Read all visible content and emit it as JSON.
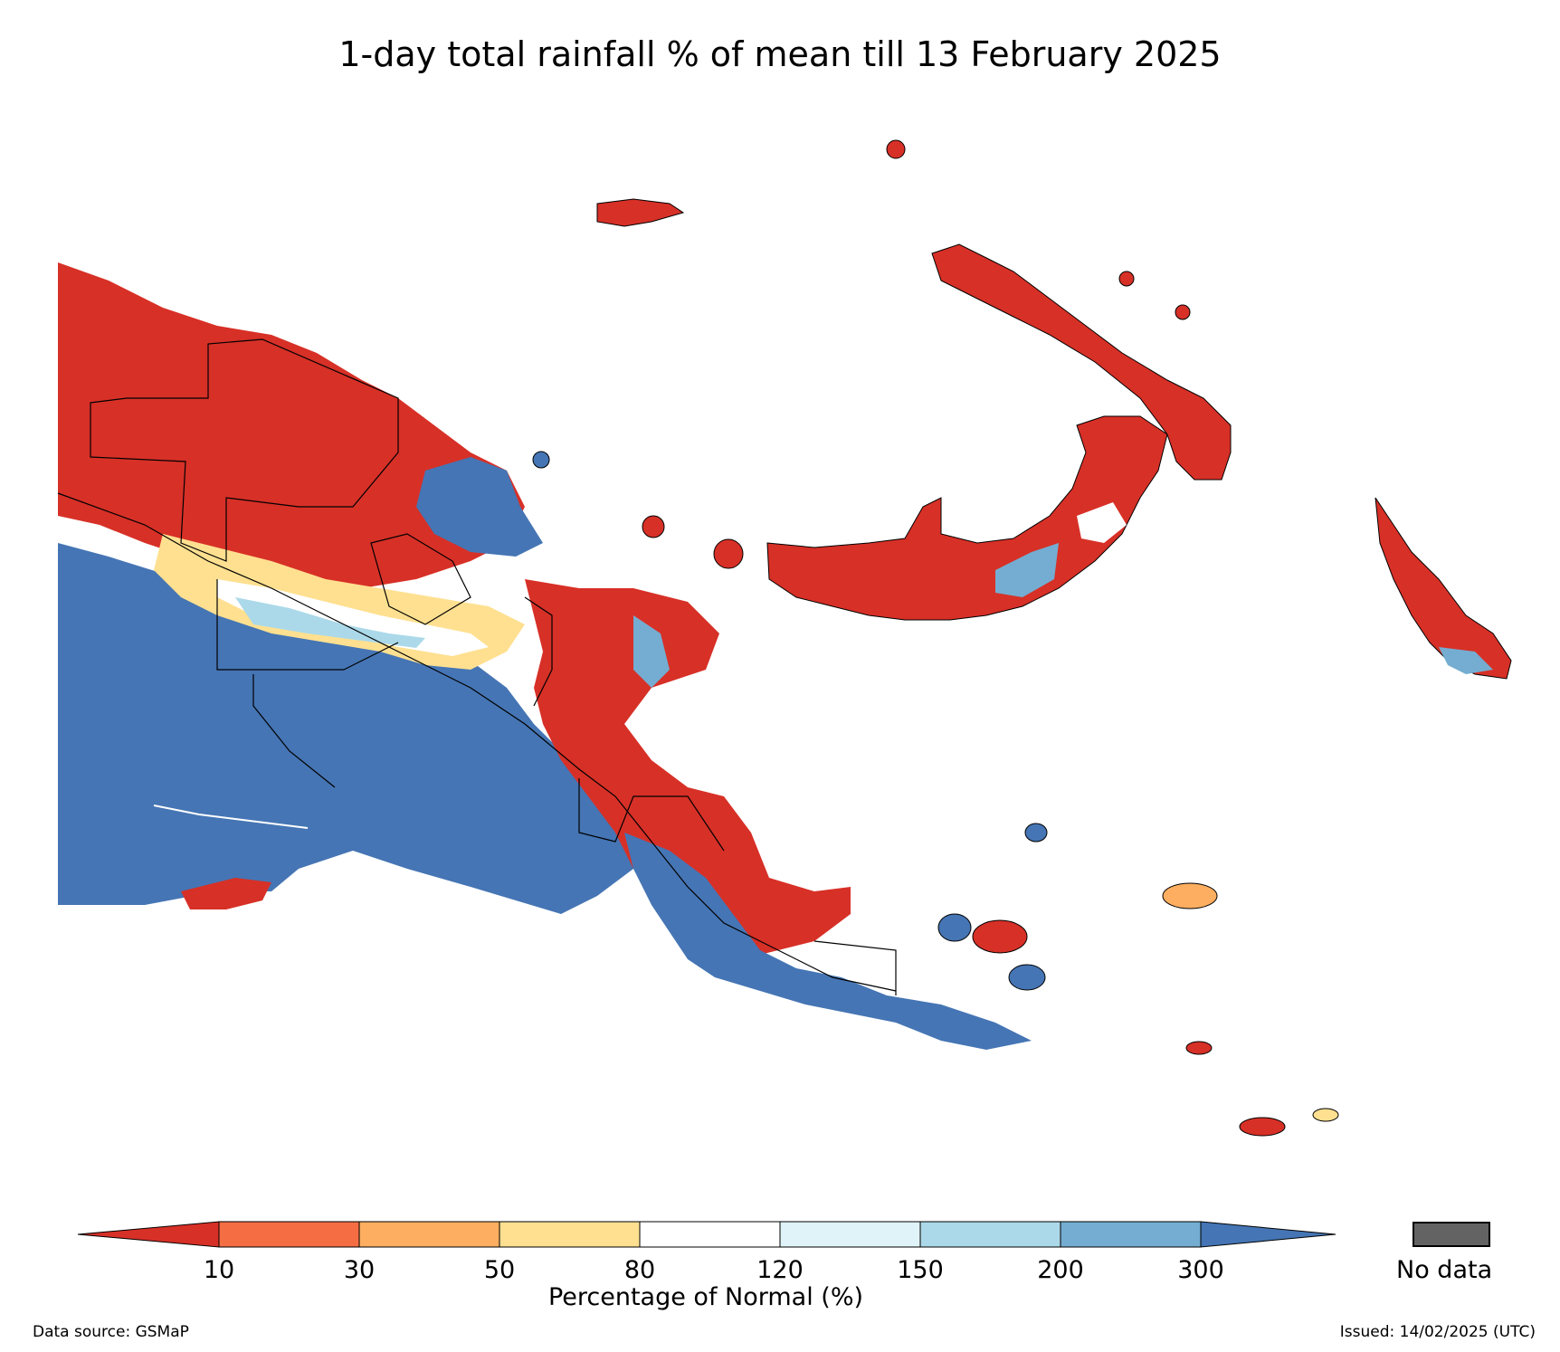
{
  "title": "1-day total rainfall % of mean till 13 February 2025",
  "legend": {
    "label": "Percentage of Normal (%)",
    "ticks": [
      "10",
      "30",
      "50",
      "80",
      "120",
      "150",
      "200",
      "300"
    ],
    "classes": [
      {
        "range": "<10",
        "color": "#d73027"
      },
      {
        "range": "10-30",
        "color": "#f46d43"
      },
      {
        "range": "30-50",
        "color": "#fdae61"
      },
      {
        "range": "50-80",
        "color": "#fee090"
      },
      {
        "range": "80-120",
        "color": "#ffffff"
      },
      {
        "range": "120-150",
        "color": "#e0f3f8"
      },
      {
        "range": "150-200",
        "color": "#abd9e9"
      },
      {
        "range": "200-300",
        "color": "#74add1"
      },
      {
        "range": ">300",
        "color": "#4575b4"
      }
    ],
    "no_data_label": "No data",
    "no_data_color": "#636363"
  },
  "footer": {
    "source": "Data source: GSMaP",
    "issued": "Issued: 14/02/2025 (UTC)"
  },
  "map": {
    "region": "Papua New Guinea",
    "colors": {
      "very_dry": "#d73027",
      "dry": "#f46d43",
      "below": "#fdae61",
      "slightly_below": "#fee090",
      "normal": "#ffffff",
      "above": "#abd9e9",
      "wet": "#74add1",
      "very_wet": "#4575b4",
      "boundary": "#000000"
    }
  }
}
